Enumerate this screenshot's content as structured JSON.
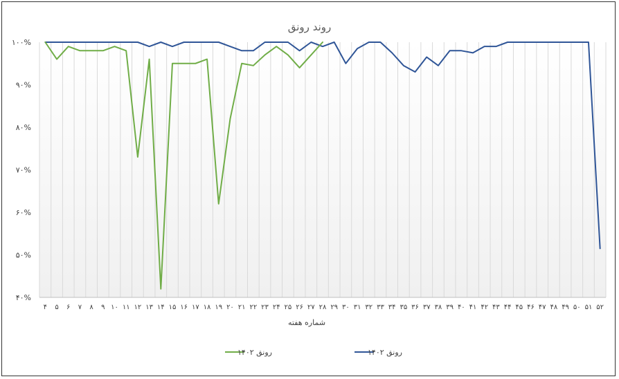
{
  "chart_data": {
    "type": "line",
    "title": "روند رونق",
    "xlabel": "شماره هفته",
    "ylabel": "",
    "ylim": [
      40,
      100
    ],
    "yticks": [
      "۴۰%",
      "۵۰%",
      "۶۰%",
      "۷۰%",
      "۸۰%",
      "۹۰%",
      "۱۰۰%"
    ],
    "ytick_values": [
      40,
      50,
      60,
      70,
      80,
      90,
      100
    ],
    "categories": [
      "۴",
      "۵",
      "۶",
      "۷",
      "۸",
      "۹",
      "۱۰",
      "۱۱",
      "۱۲",
      "۱۳",
      "۱۴",
      "۱۵",
      "۱۶",
      "۱۷",
      "۱۸",
      "۱۹",
      "۲۰",
      "۲۱",
      "۲۲",
      "۲۳",
      "۲۴",
      "۲۵",
      "۲۶",
      "۲۷",
      "۲۸",
      "۲۹",
      "۳۰",
      "۳۱",
      "۳۲",
      "۳۳",
      "۳۴",
      "۳۵",
      "۳۶",
      "۳۷",
      "۳۸",
      "۳۹",
      "۴۰",
      "۴۱",
      "۴۲",
      "۴۳",
      "۴۴",
      "۴۵",
      "۴۶",
      "۴۷",
      "۴۸",
      "۴۹",
      "۵۰",
      "۵۱",
      "۵۲"
    ],
    "grid": "vertical",
    "legend_position": "bottom",
    "series": [
      {
        "name": "رونق ۱۴۰۲",
        "color": "#70AD47",
        "values": [
          100,
          96,
          99,
          98,
          98,
          98,
          99,
          98,
          73,
          96,
          42,
          95,
          95,
          95,
          96,
          62,
          82,
          95,
          94.5,
          97,
          99,
          97,
          94,
          97,
          100,
          null,
          null,
          null,
          null,
          null,
          null,
          null,
          null,
          null,
          null,
          null,
          null,
          null,
          null,
          null,
          null,
          null,
          null,
          null,
          null,
          null,
          null,
          null,
          null
        ]
      },
      {
        "name": "رونق ۱۴۰۲",
        "color": "#2F5597",
        "values": [
          100,
          100,
          100,
          100,
          100,
          100,
          100,
          100,
          100,
          99,
          100,
          99,
          100,
          100,
          100,
          100,
          99,
          98,
          98,
          100,
          100,
          100,
          98,
          100,
          99,
          100,
          95,
          98.5,
          100,
          100,
          97.5,
          94.5,
          93,
          96.5,
          94.5,
          98,
          98,
          97.5,
          99,
          99,
          100,
          100,
          100,
          100,
          100,
          100,
          100,
          100,
          51.5
        ]
      }
    ]
  }
}
